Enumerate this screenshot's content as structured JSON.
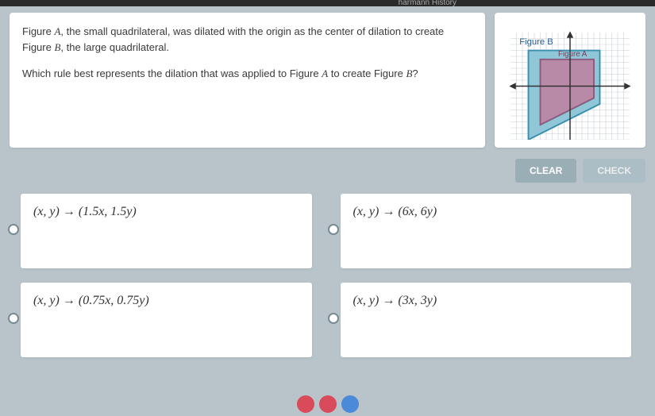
{
  "topbar": {
    "text": "harmann   History"
  },
  "question": {
    "line1_pre": "Figure ",
    "figA": "A",
    "line1_mid": ", the small quadrilateral, was dilated with the origin as the center of dilation to create Figure ",
    "figB": "B",
    "line1_post": ", the large quadrilateral.",
    "line2_pre": "Which rule best represents the dilation that was applied to Figure ",
    "line2_mid": " to create Figure ",
    "line2_post": "?"
  },
  "figure": {
    "labelB": "Figure B",
    "labelA": "Figure A",
    "grid_color": "#9aa8b0",
    "axis_color": "#333333",
    "outer_fill": "#8fc7d9",
    "outer_stroke": "#3a8fb0",
    "inner_fill": "#b88aa8",
    "inner_stroke": "#8a5a7a",
    "bg": "#ffffff",
    "outer_poly": [
      [
        -7,
        6
      ],
      [
        5,
        6
      ],
      [
        5,
        -3
      ],
      [
        -7,
        -9
      ]
    ],
    "inner_poly": [
      [
        -5,
        4.5
      ],
      [
        4,
        4.5
      ],
      [
        4,
        -2
      ],
      [
        -5,
        -6.5
      ]
    ]
  },
  "buttons": {
    "clear": "CLEAR",
    "check": "CHECK"
  },
  "answers": {
    "a": "(x, y) → (1.5x, 1.5y)",
    "b": "(x, y) → (6x, 6y)",
    "c": "(x, y) → (0.75x, 0.75y)",
    "d": "(x, y) → (3x, 3y)"
  },
  "colors": {
    "page_bg": "#b8c4c9",
    "card_bg": "#ffffff",
    "btn_clear": "#9aaeb6",
    "btn_check": "#a8bcc4"
  }
}
